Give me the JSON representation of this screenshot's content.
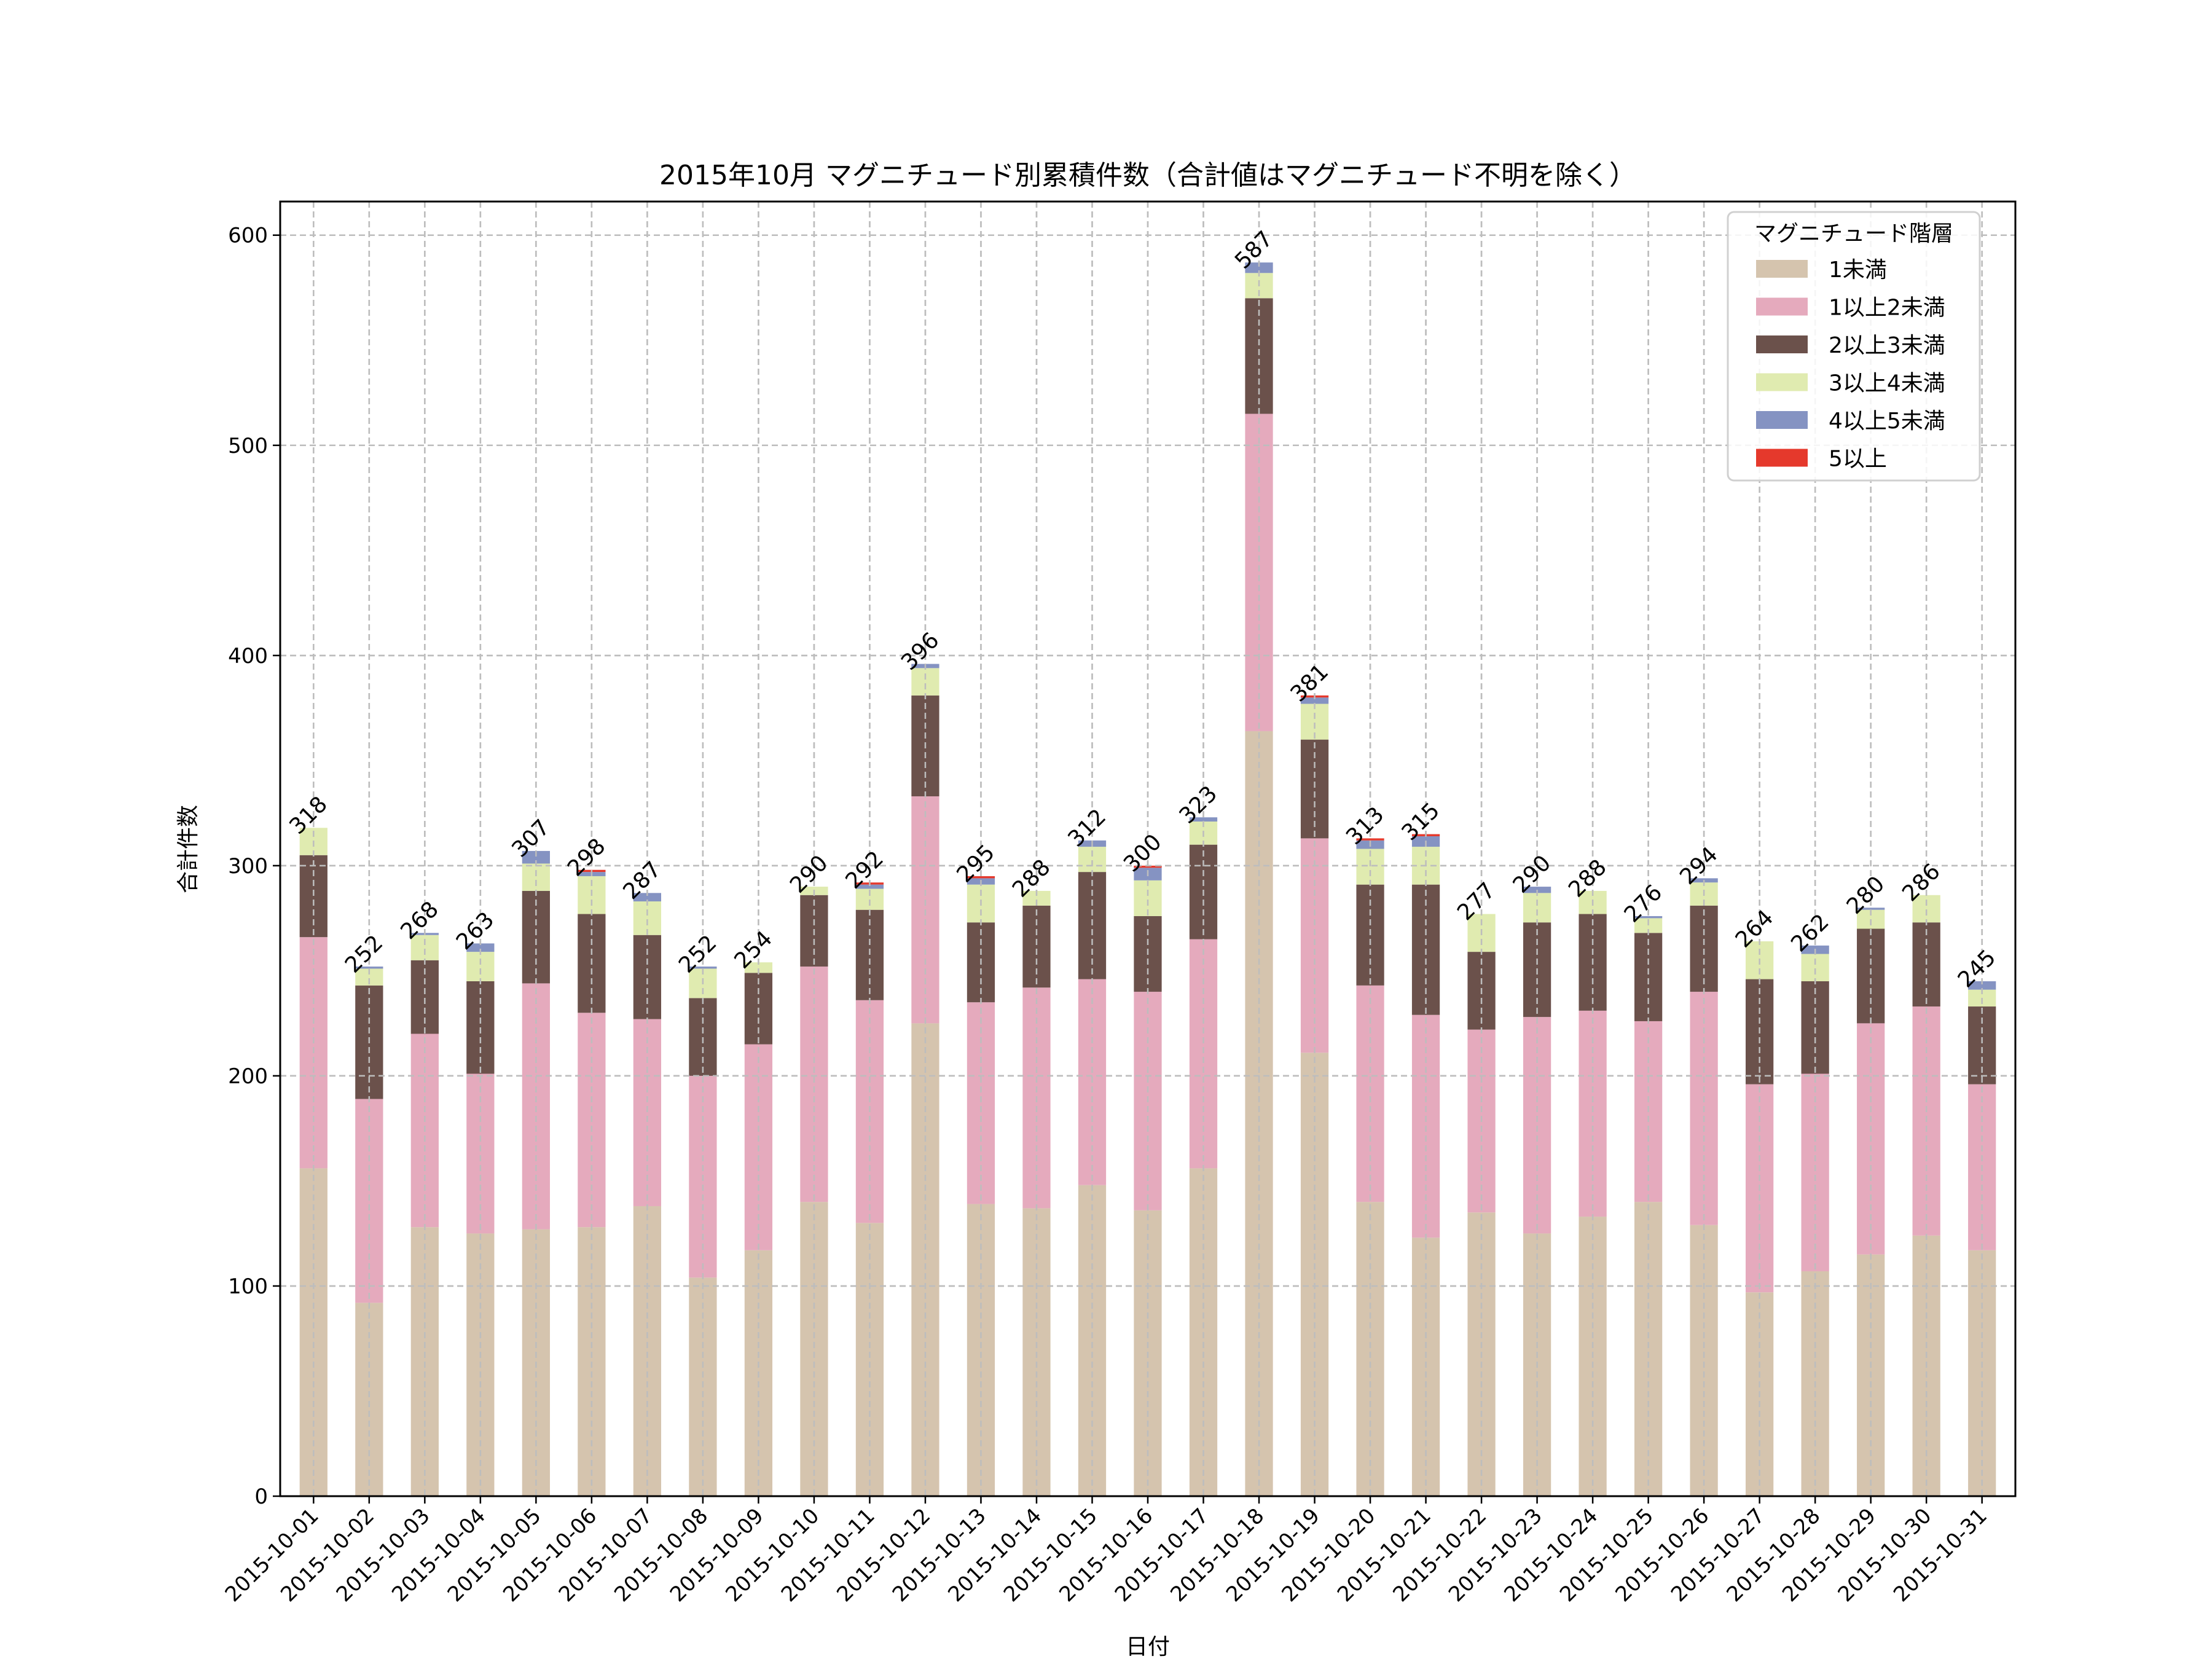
{
  "chart_data": {
    "type": "bar",
    "stacked": true,
    "title": "2015年10月 マグニチュード別累積件数（合計値はマグニチュード不明を除く）",
    "xlabel": "日付",
    "ylabel": "合計件数",
    "ylim": [
      0,
      616
    ],
    "yticks": [
      0,
      100,
      200,
      300,
      400,
      500,
      600
    ],
    "grid": true,
    "legend": {
      "title": "マグニチュード階層",
      "placement": "top-right"
    },
    "categories": [
      "2015-10-01",
      "2015-10-02",
      "2015-10-03",
      "2015-10-04",
      "2015-10-05",
      "2015-10-06",
      "2015-10-07",
      "2015-10-08",
      "2015-10-09",
      "2015-10-10",
      "2015-10-11",
      "2015-10-12",
      "2015-10-13",
      "2015-10-14",
      "2015-10-15",
      "2015-10-16",
      "2015-10-17",
      "2015-10-18",
      "2015-10-19",
      "2015-10-20",
      "2015-10-21",
      "2015-10-22",
      "2015-10-23",
      "2015-10-24",
      "2015-10-25",
      "2015-10-26",
      "2015-10-27",
      "2015-10-28",
      "2015-10-29",
      "2015-10-30",
      "2015-10-31"
    ],
    "series": [
      {
        "name": "1未満",
        "color": "#d5c4ae",
        "values": [
          156,
          92,
          128,
          125,
          127,
          128,
          138,
          104,
          117,
          140,
          130,
          225,
          139,
          137,
          148,
          136,
          156,
          364,
          211,
          140,
          123,
          135,
          125,
          133,
          140,
          129,
          97,
          107,
          115,
          124,
          117
        ]
      },
      {
        "name": "1以上2未満",
        "color": "#e5aabd",
        "values": [
          110,
          97,
          92,
          76,
          117,
          102,
          89,
          96,
          98,
          112,
          106,
          108,
          96,
          105,
          98,
          104,
          109,
          151,
          102,
          103,
          106,
          87,
          103,
          98,
          86,
          111,
          99,
          94,
          110,
          109,
          79
        ]
      },
      {
        "name": "2以上3未満",
        "color": "#6b514b",
        "values": [
          39,
          54,
          35,
          44,
          44,
          47,
          40,
          37,
          34,
          34,
          43,
          48,
          38,
          39,
          51,
          36,
          45,
          55,
          47,
          48,
          62,
          37,
          45,
          46,
          42,
          41,
          50,
          44,
          45,
          40,
          37
        ]
      },
      {
        "name": "3以上4未満",
        "color": "#e0ebb0",
        "values": [
          13,
          8,
          12,
          14,
          13,
          18,
          16,
          14,
          5,
          4,
          10,
          13,
          18,
          7,
          12,
          17,
          11,
          12,
          17,
          17,
          18,
          18,
          14,
          11,
          7,
          11,
          18,
          13,
          9,
          13,
          8
        ]
      },
      {
        "name": "4以上5未満",
        "color": "#8593c2",
        "values": [
          0,
          1,
          1,
          4,
          6,
          2,
          4,
          1,
          0,
          0,
          2,
          2,
          3,
          0,
          3,
          6,
          2,
          5,
          3,
          4,
          5,
          0,
          3,
          0,
          1,
          2,
          0,
          4,
          1,
          0,
          4
        ]
      },
      {
        "name": "5以上",
        "color": "#e5392c",
        "values": [
          0,
          0,
          0,
          0,
          0,
          1,
          0,
          0,
          0,
          0,
          1,
          0,
          1,
          0,
          0,
          1,
          0,
          0,
          1,
          1,
          1,
          0,
          0,
          0,
          0,
          0,
          0,
          0,
          0,
          0,
          0
        ]
      }
    ],
    "totals": [
      318,
      252,
      268,
      263,
      307,
      298,
      287,
      252,
      254,
      290,
      292,
      396,
      295,
      288,
      312,
      300,
      323,
      587,
      381,
      313,
      315,
      277,
      290,
      288,
      276,
      294,
      264,
      262,
      280,
      286,
      245
    ]
  }
}
